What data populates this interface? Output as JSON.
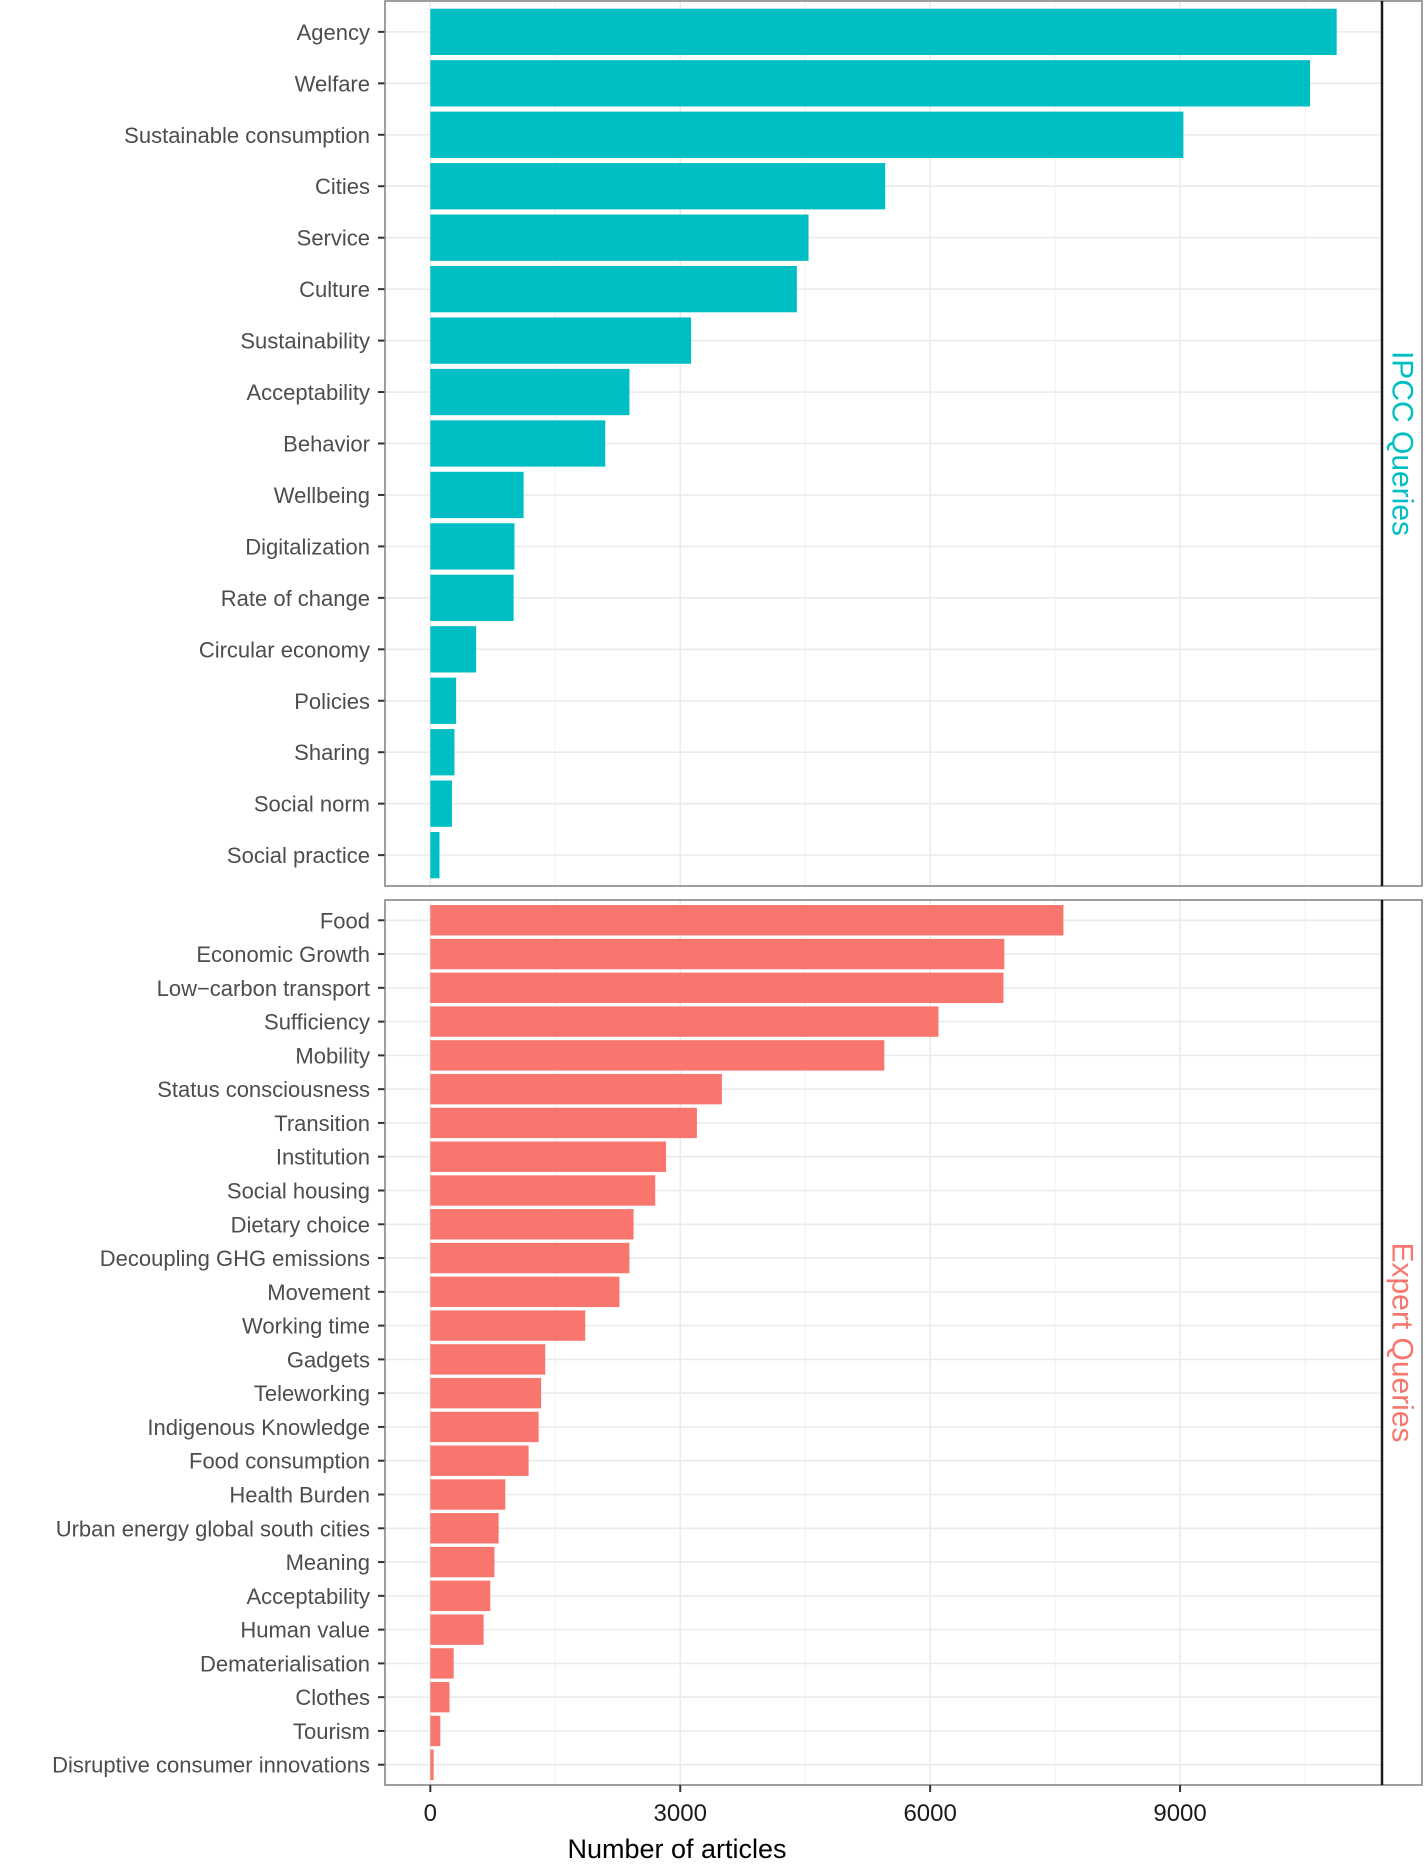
{
  "chart_data": {
    "type": "bar",
    "orientation": "horizontal",
    "title": "",
    "xlabel": "Number of articles",
    "ylabel": "",
    "xlim": [
      -544,
      11424
    ],
    "x_ticks": [
      0,
      3000,
      6000,
      9000
    ],
    "x_tick_labels": [
      "0",
      "3000",
      "6000",
      "9000"
    ],
    "grid": true,
    "facet_strip_position": "right",
    "panels": [
      {
        "name": "IPCC Queries",
        "color": "#00BFC4",
        "categories": [
          "Agency",
          "Welfare",
          "Sustainable consumption",
          "Cities",
          "Service",
          "Culture",
          "Sustainability",
          "Acceptability",
          "Behavior",
          "Wellbeing",
          "Digitalization",
          "Rate of change",
          "Circular economy",
          "Policies",
          "Sharing",
          "Social norm",
          "Social practice"
        ],
        "values": [
          10880,
          10560,
          9040,
          5460,
          4540,
          4400,
          3130,
          2390,
          2100,
          1120,
          1010,
          1000,
          550,
          310,
          290,
          260,
          110
        ]
      },
      {
        "name": "Expert Queries",
        "color": "#F8766D",
        "categories": [
          "Food",
          "Economic Growth",
          "Low−carbon transport",
          "Sufficiency",
          "Mobility",
          "Status consciousness",
          "Transition",
          "Institution",
          "Social housing",
          "Dietary choice",
          "Decoupling GHG emissions",
          "Movement",
          "Working time",
          "Gadgets",
          "Teleworking",
          "Indigenous Knowledge",
          "Food consumption",
          "Health Burden",
          "Urban energy global south cities",
          "Meaning",
          "Acceptability",
          "Human value",
          "Dematerialisation",
          "Clothes",
          "Tourism",
          "Disruptive consumer innovations"
        ],
        "values": [
          7600,
          6890,
          6880,
          6100,
          5450,
          3500,
          3200,
          2830,
          2700,
          2440,
          2390,
          2270,
          1860,
          1380,
          1330,
          1300,
          1180,
          900,
          820,
          770,
          720,
          640,
          280,
          230,
          120,
          40
        ]
      }
    ]
  }
}
